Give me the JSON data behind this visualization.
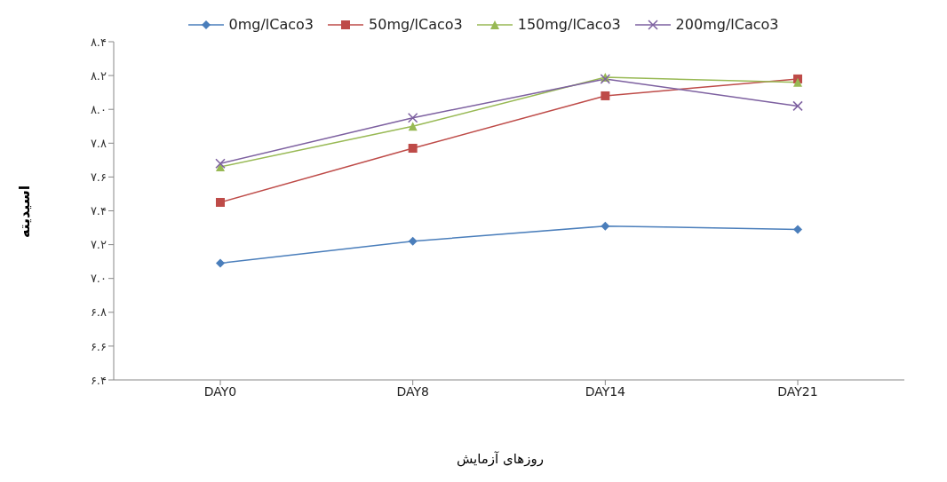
{
  "chart_data": {
    "type": "line",
    "xlabel": "روزهای آزمایش",
    "ylabel": "اسیدیته",
    "categories": [
      "DAY0",
      "DAY8",
      "DAY14",
      "DAY21"
    ],
    "series": [
      {
        "name": "0mg/lCaco3",
        "color": "#4a7ebb",
        "marker": "diamond",
        "values": [
          7.09,
          7.22,
          7.31,
          7.29
        ]
      },
      {
        "name": "50mg/lCaco3",
        "color": "#be4b48",
        "marker": "square",
        "values": [
          7.45,
          7.77,
          8.08,
          8.18
        ]
      },
      {
        "name": "150mg/lCaco3",
        "color": "#98b954",
        "marker": "triangle",
        "values": [
          7.66,
          7.9,
          8.19,
          8.16
        ]
      },
      {
        "name": "200mg/lCaco3",
        "color": "#7d60a0",
        "marker": "cross",
        "values": [
          7.68,
          7.95,
          8.18,
          8.02
        ]
      }
    ],
    "ylim": [
      6.4,
      8.4
    ],
    "yticks": [
      {
        "value": 6.4,
        "label": "۶.۴"
      },
      {
        "value": 6.6,
        "label": "۶.۶"
      },
      {
        "value": 6.8,
        "label": "۶.۸"
      },
      {
        "value": 7.0,
        "label": "۷.۰"
      },
      {
        "value": 7.2,
        "label": "۷.۲"
      },
      {
        "value": 7.4,
        "label": "۷.۴"
      },
      {
        "value": 7.6,
        "label": "۷.۶"
      },
      {
        "value": 7.8,
        "label": "۷.۸"
      },
      {
        "value": 8.0,
        "label": "۸.۰"
      },
      {
        "value": 8.2,
        "label": "۸.۲"
      },
      {
        "value": 8.4,
        "label": "۸.۴"
      }
    ],
    "grid": false,
    "legend": "top",
    "line_style": "solid"
  }
}
